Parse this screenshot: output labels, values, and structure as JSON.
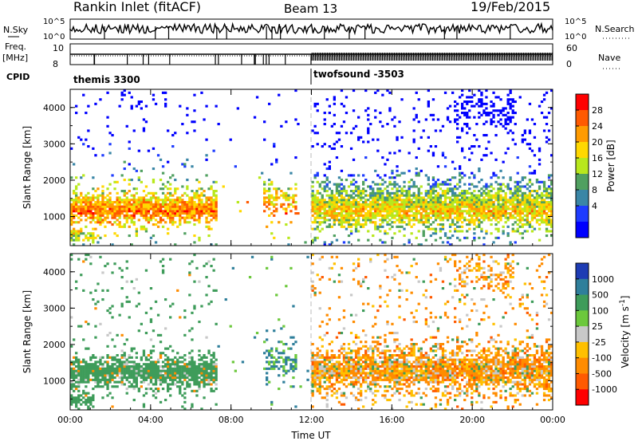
{
  "header": {
    "station": "Rankin Inlet (fitACF)",
    "beam": "Beam 13",
    "date": "19/Feb/2015"
  },
  "strip": {
    "nsky_label": "N.Sky",
    "nsearch_label": "N.Search",
    "nsky_ticks": [
      "10^5",
      "10^0"
    ],
    "nsearch_ticks": [
      "10^5",
      "10^0"
    ],
    "freq_label": "Freq.",
    "freq_unit": "[MHz]",
    "freq_ticks": [
      "10",
      "8"
    ],
    "nave_label": "Nave",
    "nave_ticks": [
      "60",
      "0"
    ],
    "cpid_label": "CPID",
    "cpid_segments": [
      "themis 3300",
      "twofsound -3503"
    ]
  },
  "chart_data": [
    {
      "type": "heatmap",
      "panel": "power",
      "ylabel": "Slant Range [km]",
      "yticks": [
        1000,
        2000,
        3000,
        4000
      ],
      "ylim": [
        200,
        4500
      ],
      "xticks": [
        "00:00",
        "04:00",
        "08:00",
        "12:00",
        "16:00",
        "20:00",
        "00:00"
      ],
      "colorbar": {
        "label": "Power [dB]",
        "ticks": [
          "28",
          "24",
          "20",
          "16",
          "12",
          "8",
          "4"
        ],
        "colors": [
          "#ff0000",
          "#ff5a00",
          "#ff9b00",
          "#ffd800",
          "#b8e81d",
          "#50a060",
          "#3a86a6",
          "#1e3cff",
          "#0000ff"
        ]
      }
    },
    {
      "type": "heatmap",
      "panel": "velocity",
      "ylabel": "Slant Range [km]",
      "yticks": [
        1000,
        2000,
        3000,
        4000
      ],
      "ylim": [
        200,
        4500
      ],
      "xticks": [
        "00:00",
        "04:00",
        "08:00",
        "12:00",
        "16:00",
        "20:00",
        "00:00"
      ],
      "xlabel": "Time UT",
      "colorbar": {
        "label": "Velocity [m s^-1]",
        "ticks": [
          "1000",
          "500",
          "100",
          "25",
          "-25",
          "-100",
          "-500",
          "-1000"
        ],
        "colors": [
          "#1e3cb4",
          "#2f7f9b",
          "#3e9c5a",
          "#6cc83c",
          "#c8c8c8",
          "#ffc000",
          "#ff8c00",
          "#ff5a00",
          "#ff0000"
        ]
      }
    }
  ]
}
